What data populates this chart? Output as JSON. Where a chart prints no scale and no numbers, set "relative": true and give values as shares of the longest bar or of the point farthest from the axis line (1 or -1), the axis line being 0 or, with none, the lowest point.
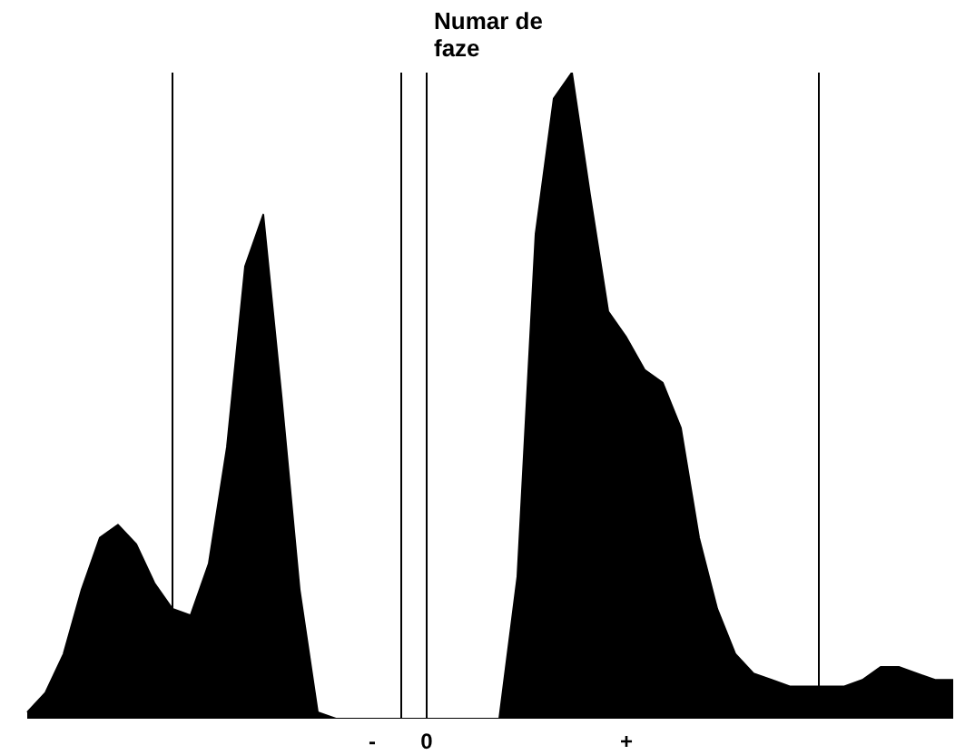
{
  "chart_data": {
    "type": "area",
    "ylabel": "Numar de faze",
    "relative": true,
    "color": "#000000",
    "categories": [
      null,
      null,
      null,
      null,
      null,
      null,
      null,
      null,
      null,
      null,
      null,
      null,
      null,
      null,
      null,
      null,
      null,
      null,
      null,
      "-",
      null,
      null,
      "0",
      null,
      null,
      null,
      null,
      null,
      null,
      null,
      null,
      null,
      null,
      "+",
      null,
      null,
      null,
      null,
      null,
      null,
      null,
      null,
      null,
      null,
      null,
      null,
      null,
      null,
      null,
      null,
      null,
      null
    ],
    "values": [
      0.01,
      0.04,
      0.1,
      0.2,
      0.28,
      0.3,
      0.27,
      0.21,
      0.17,
      0.16,
      0.24,
      0.42,
      0.7,
      0.78,
      0.5,
      0.2,
      0.01,
      0,
      0,
      0,
      0,
      0,
      0,
      0,
      0,
      0,
      0,
      0.22,
      0.75,
      0.96,
      1,
      0.81,
      0.63,
      0.59,
      0.54,
      0.52,
      0.45,
      0.28,
      0.17,
      0.1,
      0.07,
      0.06,
      0.05,
      0.05,
      0.05,
      0.05,
      0.06,
      0.08,
      0.08,
      0.07,
      0.06,
      0.06
    ]
  }
}
